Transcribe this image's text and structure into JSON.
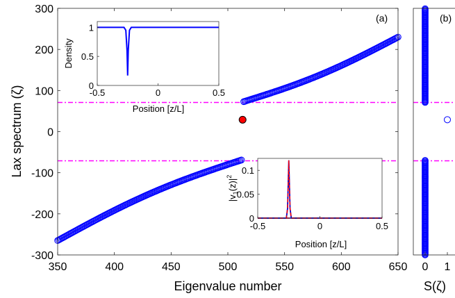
{
  "colors": {
    "marker": "#0000ff",
    "threshold": "#ff00ff",
    "highlight": "#ff0000",
    "eigvec_blue": "#0000cc",
    "eigvec_red": "#ff0000"
  },
  "chart_data": [
    {
      "panel": "a",
      "type": "scatter",
      "panel_label": "(a)",
      "xlabel": "Eigenvalue number",
      "ylabel": "Lax spectrum (ζ)",
      "xlim": [
        350,
        650
      ],
      "ylim": [
        -300,
        300
      ],
      "xticks": [
        350,
        400,
        450,
        500,
        550,
        600,
        650
      ],
      "yticks": [
        -300,
        -200,
        -100,
        0,
        100,
        200,
        300
      ],
      "threshold_lines": [
        71,
        -71
      ],
      "series": [
        {
          "marker": "open-circle",
          "x_range": [
            350,
            512
          ],
          "y_start": -265,
          "y_end": -69
        },
        {
          "marker": "open-circle",
          "x_range": [
            514,
            650
          ],
          "y_start": 73,
          "y_end": 230
        }
      ],
      "highlight_point": {
        "x": 513,
        "y": 29
      }
    },
    {
      "panel": "a-inset-top",
      "type": "line",
      "xlabel": "Position [z/L]",
      "ylabel": "Density",
      "xlim": [
        -0.5,
        0.5
      ],
      "ylim": [
        0,
        1.1
      ],
      "xticks": [
        -0.5,
        0,
        0.5
      ],
      "yticks": [
        0,
        0.5,
        1
      ],
      "x": [
        -0.5,
        -0.28,
        -0.265,
        -0.255,
        -0.25,
        -0.245,
        -0.235,
        -0.22,
        0.5
      ],
      "y": [
        1.0,
        1.0,
        0.95,
        0.6,
        0.17,
        0.6,
        0.95,
        1.0,
        1.0
      ]
    },
    {
      "panel": "a-inset-bottom",
      "type": "line",
      "xlabel": "Position [z/L]",
      "ylabel": "|v1(z)|2",
      "xlim": [
        -0.5,
        0.5
      ],
      "ylim": [
        0,
        0.125
      ],
      "xticks": [
        -0.5,
        0,
        0.5
      ],
      "yticks": [
        0,
        0.05,
        0.1
      ],
      "x": [
        -0.5,
        -0.27,
        -0.26,
        -0.255,
        -0.25,
        -0.245,
        -0.24,
        -0.23,
        0.5
      ],
      "y": [
        0,
        0,
        0.02,
        0.07,
        0.121,
        0.07,
        0.02,
        0,
        0
      ]
    },
    {
      "panel": "b",
      "type": "scatter",
      "panel_label": "(b)",
      "xlabel": "S(ζ)",
      "xticks": [
        0,
        1
      ],
      "isolated_point": {
        "x": 1,
        "y": 29
      }
    }
  ]
}
